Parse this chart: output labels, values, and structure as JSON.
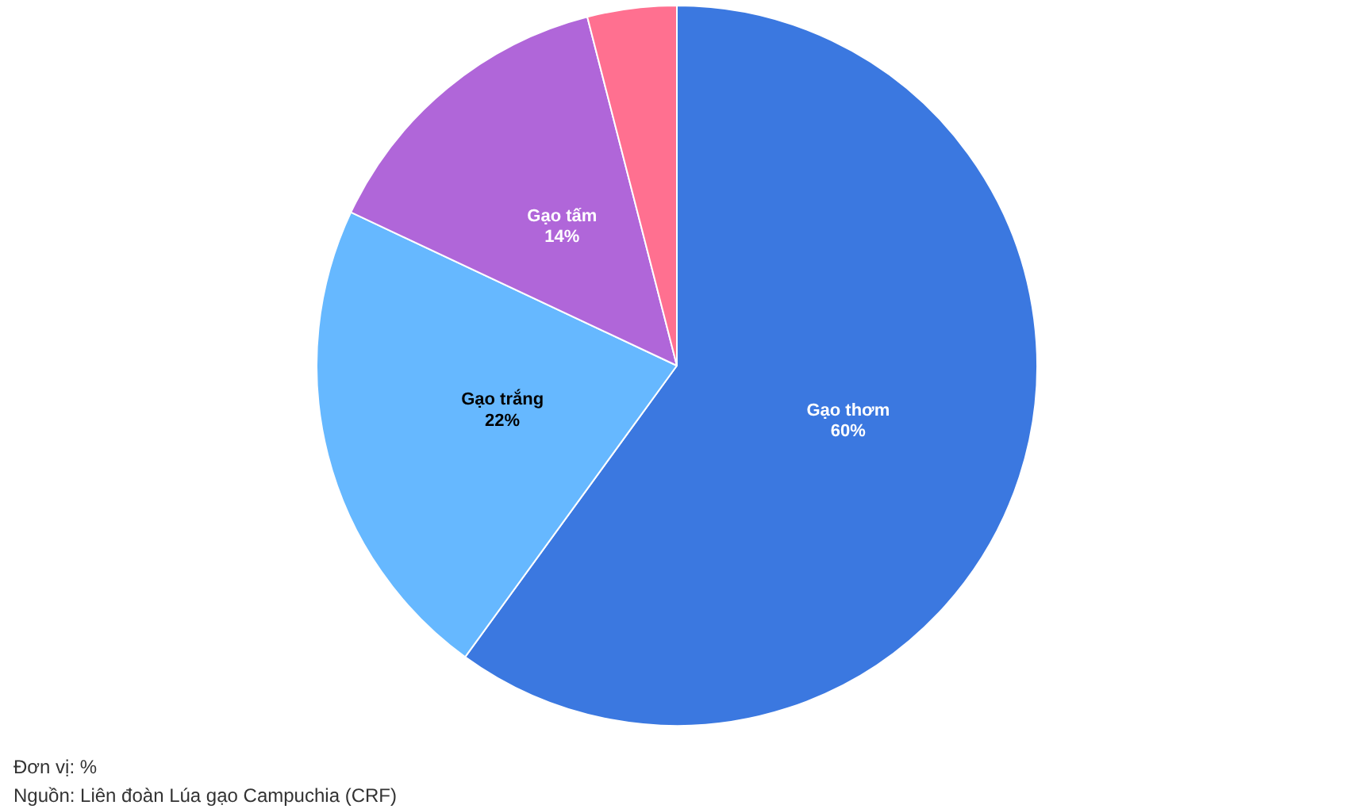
{
  "chart_data": {
    "type": "pie",
    "categories": [
      "Gạo thơm",
      "Gạo trắng",
      "Gạo tấm",
      null
    ],
    "values": [
      60,
      22,
      14,
      4
    ],
    "colors": [
      "#3b78e0",
      "#66b8ff",
      "#b066d9",
      "#ff7090"
    ],
    "value_labels": [
      "60%",
      "22%",
      "14%",
      null
    ],
    "annotations": [
      "Đơn vị: %",
      "Nguồn: Liên đoàn Lúa gạo Campuchia (CRF)"
    ]
  }
}
